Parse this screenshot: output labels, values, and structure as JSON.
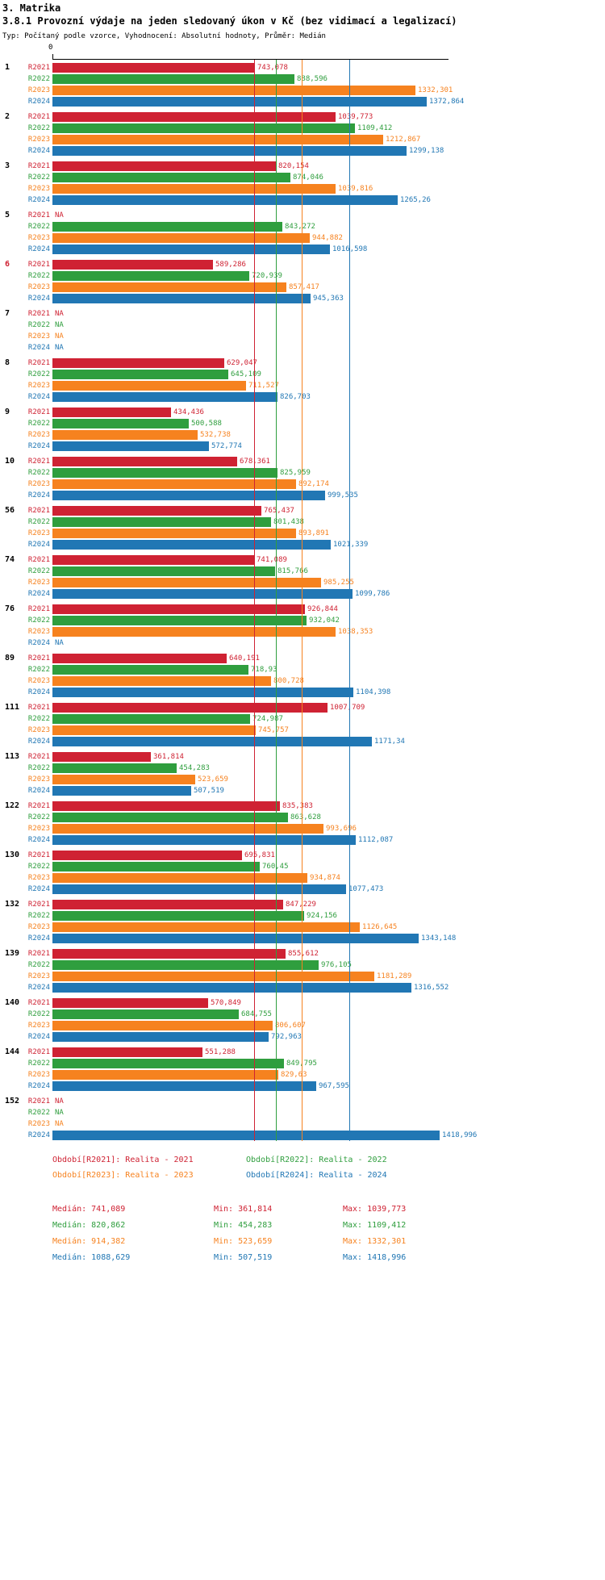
{
  "header": {
    "title": "3. Matrika",
    "subtitle": "3.8.1 Provozní výdaje na jeden sledovaný úkon v Kč (bez vidimací a legalizací)",
    "meta": "Typ: Počítaný podle vzorce, Vyhodnocení: Absolutní hodnoty, Průměr: Medián"
  },
  "chart_data": {
    "type": "bar",
    "orientation": "horizontal",
    "value_unit": "Kč",
    "axis": {
      "zero_label": "0",
      "min": 0,
      "max": 1450
    },
    "series": [
      {
        "name": "R2021",
        "color": "#cf2233",
        "median": 741.089
      },
      {
        "name": "R2022",
        "color": "#2f9e3e",
        "median": 820.862
      },
      {
        "name": "R2023",
        "color": "#f6821f",
        "median": 914.382
      },
      {
        "name": "R2024",
        "color": "#2177b4",
        "median": 1088.629
      }
    ],
    "groups": [
      {
        "id": "1",
        "highlight": false,
        "bars": [
          {
            "label": "743,078",
            "value": 743.078
          },
          {
            "label": "888,596",
            "value": 888.596
          },
          {
            "label": "1332,301",
            "value": 1332.301
          },
          {
            "label": "1372,864",
            "value": 1372.864
          }
        ]
      },
      {
        "id": "2",
        "highlight": false,
        "bars": [
          {
            "label": "1039,773",
            "value": 1039.773
          },
          {
            "label": "1109,412",
            "value": 1109.412
          },
          {
            "label": "1212,867",
            "value": 1212.867
          },
          {
            "label": "1299,138",
            "value": 1299.138
          }
        ]
      },
      {
        "id": "3",
        "highlight": false,
        "bars": [
          {
            "label": "820,154",
            "value": 820.154
          },
          {
            "label": "874,046",
            "value": 874.046
          },
          {
            "label": "1039,816",
            "value": 1039.816
          },
          {
            "label": "1265,26",
            "value": 1265.26
          }
        ]
      },
      {
        "id": "5",
        "highlight": false,
        "bars": [
          {
            "label": "NA",
            "value": null
          },
          {
            "label": "843,272",
            "value": 843.272
          },
          {
            "label": "944,882",
            "value": 944.882
          },
          {
            "label": "1016,598",
            "value": 1016.598
          }
        ]
      },
      {
        "id": "6",
        "highlight": true,
        "bars": [
          {
            "label": "589,286",
            "value": 589.286
          },
          {
            "label": "720,939",
            "value": 720.939
          },
          {
            "label": "857,417",
            "value": 857.417
          },
          {
            "label": "945,363",
            "value": 945.363
          }
        ]
      },
      {
        "id": "7",
        "highlight": false,
        "bars": [
          {
            "label": "NA",
            "value": null
          },
          {
            "label": "NA",
            "value": null
          },
          {
            "label": "NA",
            "value": null
          },
          {
            "label": "NA",
            "value": null
          }
        ]
      },
      {
        "id": "8",
        "highlight": false,
        "bars": [
          {
            "label": "629,047",
            "value": 629.047
          },
          {
            "label": "645,109",
            "value": 645.109
          },
          {
            "label": "711,527",
            "value": 711.527
          },
          {
            "label": "826,703",
            "value": 826.703
          }
        ]
      },
      {
        "id": "9",
        "highlight": false,
        "bars": [
          {
            "label": "434,436",
            "value": 434.436
          },
          {
            "label": "500,588",
            "value": 500.588
          },
          {
            "label": "532,738",
            "value": 532.738
          },
          {
            "label": "572,774",
            "value": 572.774
          }
        ]
      },
      {
        "id": "10",
        "highlight": false,
        "bars": [
          {
            "label": "678,361",
            "value": 678.361
          },
          {
            "label": "825,959",
            "value": 825.959
          },
          {
            "label": "892,174",
            "value": 892.174
          },
          {
            "label": "999,535",
            "value": 999.535
          }
        ]
      },
      {
        "id": "56",
        "highlight": false,
        "bars": [
          {
            "label": "765,437",
            "value": 765.437
          },
          {
            "label": "801,438",
            "value": 801.438
          },
          {
            "label": "893,891",
            "value": 893.891
          },
          {
            "label": "1021,339",
            "value": 1021.339
          }
        ]
      },
      {
        "id": "74",
        "highlight": false,
        "bars": [
          {
            "label": "741,089",
            "value": 741.089
          },
          {
            "label": "815,766",
            "value": 815.766
          },
          {
            "label": "985,255",
            "value": 985.255
          },
          {
            "label": "1099,786",
            "value": 1099.786
          }
        ]
      },
      {
        "id": "76",
        "highlight": false,
        "bars": [
          {
            "label": "926,844",
            "value": 926.844
          },
          {
            "label": "932,042",
            "value": 932.042
          },
          {
            "label": "1038,353",
            "value": 1038.353
          },
          {
            "label": "NA",
            "value": null
          }
        ]
      },
      {
        "id": "89",
        "highlight": false,
        "bars": [
          {
            "label": "640,191",
            "value": 640.191
          },
          {
            "label": "718,93",
            "value": 718.93
          },
          {
            "label": "800,728",
            "value": 800.728
          },
          {
            "label": "1104,398",
            "value": 1104.398
          }
        ]
      },
      {
        "id": "111",
        "highlight": false,
        "bars": [
          {
            "label": "1007,709",
            "value": 1007.709
          },
          {
            "label": "724,987",
            "value": 724.987
          },
          {
            "label": "745,757",
            "value": 745.757
          },
          {
            "label": "1171,34",
            "value": 1171.34
          }
        ]
      },
      {
        "id": "113",
        "highlight": false,
        "bars": [
          {
            "label": "361,814",
            "value": 361.814
          },
          {
            "label": "454,283",
            "value": 454.283
          },
          {
            "label": "523,659",
            "value": 523.659
          },
          {
            "label": "507,519",
            "value": 507.519
          }
        ]
      },
      {
        "id": "122",
        "highlight": false,
        "bars": [
          {
            "label": "835,383",
            "value": 835.383
          },
          {
            "label": "863,628",
            "value": 863.628
          },
          {
            "label": "993,696",
            "value": 993.696
          },
          {
            "label": "1112,087",
            "value": 1112.087
          }
        ]
      },
      {
        "id": "130",
        "highlight": false,
        "bars": [
          {
            "label": "695,831",
            "value": 695.831
          },
          {
            "label": "760,45",
            "value": 760.45
          },
          {
            "label": "934,874",
            "value": 934.874
          },
          {
            "label": "1077,473",
            "value": 1077.473
          }
        ]
      },
      {
        "id": "132",
        "highlight": false,
        "bars": [
          {
            "label": "847,229",
            "value": 847.229
          },
          {
            "label": "924,156",
            "value": 924.156
          },
          {
            "label": "1126,645",
            "value": 1126.645
          },
          {
            "label": "1343,148",
            "value": 1343.148
          }
        ]
      },
      {
        "id": "139",
        "highlight": false,
        "bars": [
          {
            "label": "855,612",
            "value": 855.612
          },
          {
            "label": "976,105",
            "value": 976.105
          },
          {
            "label": "1181,289",
            "value": 1181.289
          },
          {
            "label": "1316,552",
            "value": 1316.552
          }
        ]
      },
      {
        "id": "140",
        "highlight": false,
        "bars": [
          {
            "label": "570,849",
            "value": 570.849
          },
          {
            "label": "684,755",
            "value": 684.755
          },
          {
            "label": "806,607",
            "value": 806.607
          },
          {
            "label": "792,963",
            "value": 792.963
          }
        ]
      },
      {
        "id": "144",
        "highlight": false,
        "bars": [
          {
            "label": "551,288",
            "value": 551.288
          },
          {
            "label": "849,795",
            "value": 849.795
          },
          {
            "label": "829,63",
            "value": 829.63
          },
          {
            "label": "967,595",
            "value": 967.595
          }
        ]
      },
      {
        "id": "152",
        "highlight": false,
        "bars": [
          {
            "label": "NA",
            "value": null
          },
          {
            "label": "NA",
            "value": null
          },
          {
            "label": "NA",
            "value": null
          },
          {
            "label": "1418,996",
            "value": 1418.996
          }
        ]
      }
    ]
  },
  "legend": {
    "items": [
      {
        "series": "R2021",
        "label": "Období[R2021]: Realita - 2021"
      },
      {
        "series": "R2022",
        "label": "Období[R2022]: Realita - 2022"
      },
      {
        "series": "R2023",
        "label": "Období[R2023]: Realita - 2023"
      },
      {
        "series": "R2024",
        "label": "Období[R2024]: Realita - 2024"
      }
    ]
  },
  "stats": {
    "rows": [
      {
        "series": "R2021",
        "median": "Medián: 741,089",
        "min": "Min: 361,814",
        "max": "Max: 1039,773"
      },
      {
        "series": "R2022",
        "median": "Medián: 820,862",
        "min": "Min: 454,283",
        "max": "Max: 1109,412"
      },
      {
        "series": "R2023",
        "median": "Medián: 914,382",
        "min": "Min: 523,659",
        "max": "Max: 1332,301"
      },
      {
        "series": "R2024",
        "median": "Medián: 1088,629",
        "min": "Min: 507,519",
        "max": "Max: 1418,996"
      }
    ]
  }
}
